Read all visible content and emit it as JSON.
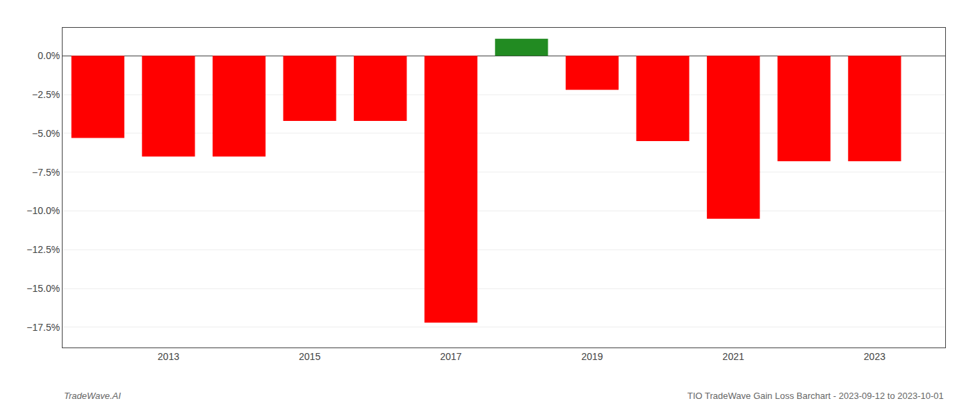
{
  "chart_data": {
    "type": "bar",
    "x": [
      2012,
      2013,
      2014,
      2015,
      2016,
      2017,
      2018,
      2019,
      2020,
      2021,
      2022,
      2023
    ],
    "values": [
      -5.3,
      -6.5,
      -6.5,
      -4.2,
      -4.2,
      -17.2,
      1.1,
      -2.2,
      -5.5,
      -10.5,
      -6.8,
      -6.8
    ],
    "colors": [
      "#ff0000",
      "#ff0000",
      "#ff0000",
      "#ff0000",
      "#ff0000",
      "#ff0000",
      "#228B22",
      "#ff0000",
      "#ff0000",
      "#ff0000",
      "#ff0000",
      "#ff0000"
    ],
    "xlim": [
      2011.5,
      2024.0
    ],
    "xticks": [
      2013,
      2015,
      2017,
      2019,
      2021,
      2023
    ],
    "ylim": [
      -18.8,
      1.8
    ],
    "yticks": [
      {
        "value": 0.0,
        "label": "0.0%"
      },
      {
        "value": -2.5,
        "label": "−2.5%"
      },
      {
        "value": -5.0,
        "label": "−5.0%"
      },
      {
        "value": -7.5,
        "label": "−7.5%"
      },
      {
        "value": -10.0,
        "label": "−10.0%"
      },
      {
        "value": -12.5,
        "label": "−12.5%"
      },
      {
        "value": -15.0,
        "label": "−15.0%"
      },
      {
        "value": -17.5,
        "label": "−17.5%"
      }
    ],
    "grid": true,
    "annotations": [
      "TradeWave.AI",
      "TIO TradeWave Gain Loss Barchart - 2023-09-12 to 2023-10-01"
    ]
  }
}
